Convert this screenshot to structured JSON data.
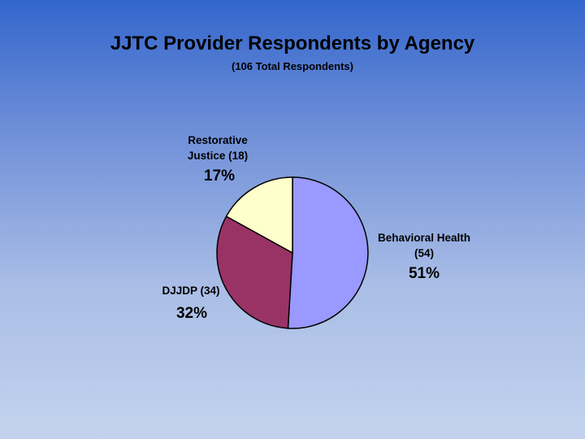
{
  "chart_data": {
    "type": "pie",
    "title": "JJTC Provider Respondents by Agency",
    "subtitle": "(106 Total Respondents)",
    "slices": [
      {
        "label_lines": [
          "Behavioral Health",
          "(54)"
        ],
        "count": 54,
        "percent_label": "51%",
        "color": "#9999ff"
      },
      {
        "label_lines": [
          "DJJDP (34)"
        ],
        "count": 34,
        "percent_label": "32%",
        "color": "#993366"
      },
      {
        "label_lines": [
          "Restorative",
          "Justice (18)"
        ],
        "count": 18,
        "percent_label": "17%",
        "color": "#ffffcc"
      }
    ]
  }
}
